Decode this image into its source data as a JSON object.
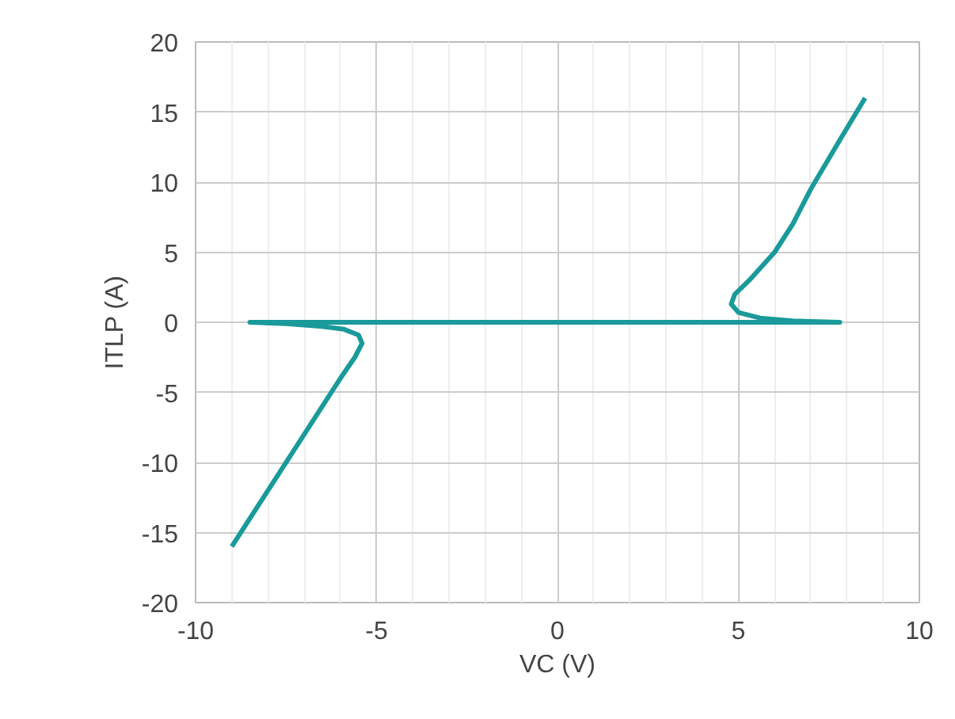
{
  "chart_data": {
    "type": "line",
    "xlabel": "VC (V)",
    "ylabel": "ITLP (A)",
    "series": [
      {
        "color": "#1a9a9a",
        "x": [
          -9,
          -8,
          -7,
          -6,
          -5.6,
          -5.4,
          -5.5,
          -5.9,
          -6.5,
          -7.5,
          -8.5,
          -4,
          0,
          4,
          7.8,
          6.5,
          5.6,
          5,
          4.8,
          4.9,
          5.3,
          6,
          6.5,
          7,
          7.8,
          8.5
        ],
        "values": [
          -16,
          -12,
          -8,
          -4,
          -2.5,
          -1.5,
          -0.9,
          -0.5,
          -0.3,
          -0.1,
          0,
          0,
          0,
          0,
          0,
          0.1,
          0.3,
          0.7,
          1.3,
          2,
          3,
          5,
          7,
          9.5,
          13,
          16
        ]
      }
    ],
    "xlim": [
      -10,
      10
    ],
    "xticks": [
      -10,
      -5,
      0,
      5,
      10
    ],
    "ylim": [
      -20,
      20
    ],
    "yticks": [
      -20,
      -15,
      -10,
      -5,
      0,
      5,
      10,
      15,
      20
    ],
    "grid": true,
    "marker": "none",
    "line_style": "solid"
  }
}
